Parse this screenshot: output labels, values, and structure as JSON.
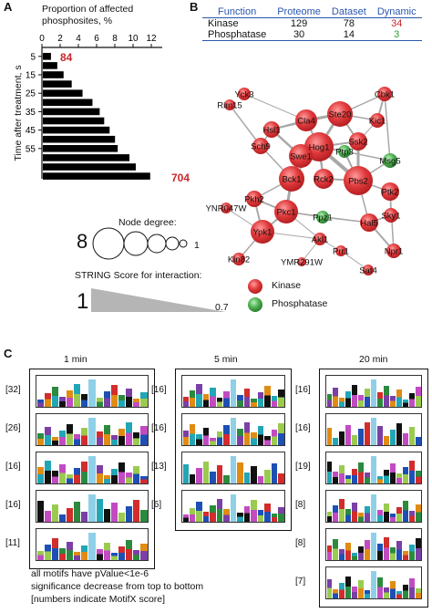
{
  "panelA": {
    "letter": "A",
    "title_line1": "Proportion of affected",
    "title_line2": "phosphosites, %",
    "x_ticks": [
      "0",
      "2",
      "4",
      "6",
      "8",
      "10",
      "12"
    ],
    "ylabel": "Time after treatment, s",
    "first_label": "84",
    "last_label": "704"
  },
  "panelB": {
    "letter": "B",
    "table": {
      "headers": [
        "Function",
        "Proteome",
        "Dataset",
        "Dynamic"
      ],
      "rows": [
        [
          "Kinase",
          "129",
          "78",
          "34"
        ],
        [
          "Phosphatase",
          "30",
          "14",
          "3"
        ]
      ]
    },
    "nodes": [
      {
        "label": "Yck3",
        "type": "kinase"
      },
      {
        "label": "Cbk1",
        "type": "kinase"
      },
      {
        "label": "Cla4",
        "type": "kinase"
      },
      {
        "label": "Ste20",
        "type": "kinase"
      },
      {
        "label": "Kic1",
        "type": "kinase"
      },
      {
        "label": "Hsl1",
        "type": "kinase"
      },
      {
        "label": "Rim15",
        "type": "kinase"
      },
      {
        "label": "Hog1",
        "type": "kinase"
      },
      {
        "label": "Ssk2",
        "type": "kinase"
      },
      {
        "label": "Sch9",
        "type": "kinase"
      },
      {
        "label": "Swe1",
        "type": "kinase"
      },
      {
        "label": "Ptp3",
        "type": "phosphatase"
      },
      {
        "label": "Msg5",
        "type": "phosphatase"
      },
      {
        "label": "Rck2",
        "type": "kinase"
      },
      {
        "label": "Pbs2",
        "type": "kinase"
      },
      {
        "label": "Bck1",
        "type": "kinase"
      },
      {
        "label": "Pkh2",
        "type": "kinase"
      },
      {
        "label": "Ptk2",
        "type": "kinase"
      },
      {
        "label": "Pkc1",
        "type": "kinase"
      },
      {
        "label": "Ppz1",
        "type": "phosphatase"
      },
      {
        "label": "Sky1",
        "type": "kinase"
      },
      {
        "label": "Hal5",
        "type": "kinase"
      },
      {
        "label": "YNR047W",
        "type": "kinase"
      },
      {
        "label": "Ypk1",
        "type": "kinase"
      },
      {
        "label": "Akl1",
        "type": "kinase"
      },
      {
        "label": "Prr1",
        "type": "kinase"
      },
      {
        "label": "Npr1",
        "type": "kinase"
      },
      {
        "label": "Kin82",
        "type": "kinase"
      },
      {
        "label": "YMR291W",
        "type": "kinase"
      },
      {
        "label": "Sat4",
        "type": "kinase"
      }
    ],
    "legend_degree_title": "Node degree:",
    "legend_degree_max": "8",
    "legend_degree_min": "1",
    "legend_string_title": "STRING Score for interaction:",
    "legend_string_max": "1",
    "legend_string_min": "0.7",
    "legend_kinase": "Kinase",
    "legend_phosphatase": "Phosphatase",
    "colors": {
      "kinase": "#e0393b",
      "phosphatase": "#4caf50",
      "table_header": "#2a57b0"
    }
  },
  "panelC": {
    "letter": "C",
    "columns": [
      {
        "title": "1 min",
        "scores": [
          "[32]",
          "[26]",
          "[16]",
          "[16]",
          "[11]"
        ]
      },
      {
        "title": "5 min",
        "scores": [
          "[16]",
          "[16]",
          "[13]",
          "[6]"
        ]
      },
      {
        "title": "20 min",
        "scores": [
          "[16]",
          "[16]",
          "[19]",
          "[8]",
          "[8]",
          "[7]"
        ]
      }
    ],
    "note_line1": "all motifs have pValue<1e-6",
    "note_line2": "significance decrease from top to bottom",
    "note_line3": "[numbers indicate MotifX score]"
  }
}
